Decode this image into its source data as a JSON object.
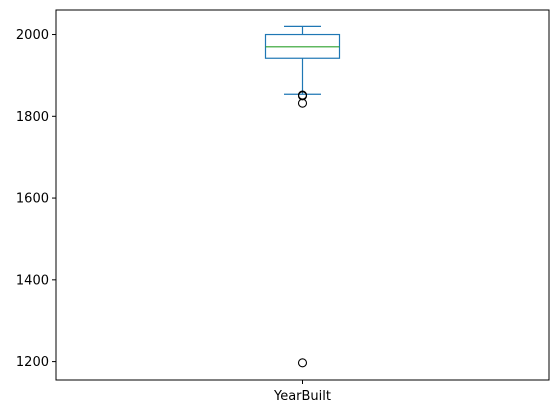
{
  "chart_data": {
    "type": "box",
    "title": "",
    "xlabel": "",
    "ylabel": "",
    "ylim": [
      1155,
      2060
    ],
    "yticks": [
      1200,
      1400,
      1600,
      1800,
      2000
    ],
    "categories": [
      "YearBuilt"
    ],
    "boxes": [
      {
        "name": "YearBuilt",
        "whisker_low": 1854,
        "q1": 1942,
        "median": 1970,
        "q3": 2000,
        "whisker_high": 2020,
        "outliers": [
          1850,
          1852,
          1832,
          1197
        ]
      }
    ],
    "colors": {
      "box": "#1f77b4",
      "median": "#2ca02c",
      "outlier": "#000000",
      "axes": "#000000"
    }
  }
}
